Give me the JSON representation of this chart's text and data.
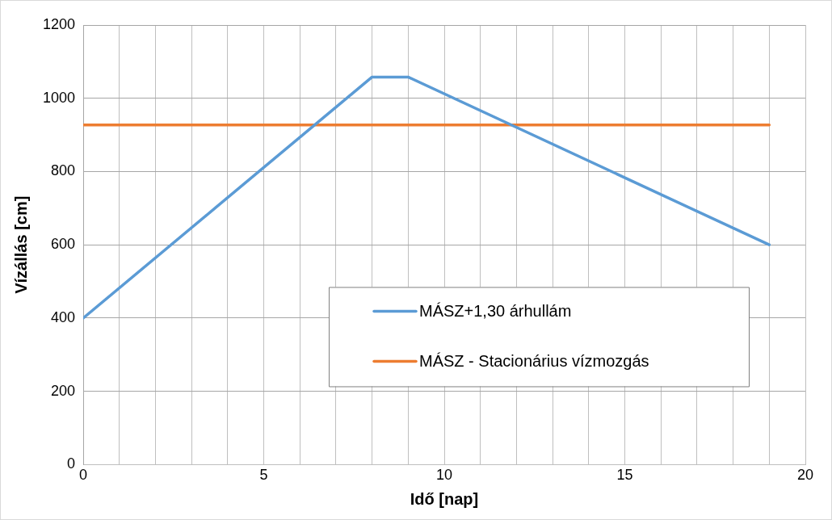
{
  "chart_data": {
    "type": "line",
    "xlabel": "Idő [nap]",
    "ylabel": "Vízállás [cm]",
    "xlim": [
      0,
      20
    ],
    "xticks": [
      0,
      {
        "value": 1,
        "label": null
      },
      {
        "value": 2,
        "label": null
      },
      {
        "value": 3,
        "label": null
      },
      {
        "value": 4,
        "label": null
      },
      5,
      {
        "value": 6,
        "label": null
      },
      {
        "value": 7,
        "label": null
      },
      {
        "value": 8,
        "label": null
      },
      {
        "value": 9,
        "label": null
      },
      10,
      {
        "value": 11,
        "label": null
      },
      {
        "value": 12,
        "label": null
      },
      {
        "value": 13,
        "label": null
      },
      {
        "value": 14,
        "label": null
      },
      15,
      {
        "value": 16,
        "label": null
      },
      {
        "value": 17,
        "label": null
      },
      {
        "value": 18,
        "label": null
      },
      {
        "value": 19,
        "label": null
      },
      20
    ],
    "ylim": [
      0,
      1200
    ],
    "yticks": [
      0,
      200,
      400,
      600,
      800,
      1000,
      1200
    ],
    "grid": true,
    "legend": "right",
    "marker": "none",
    "line_style": "solid",
    "series": [
      {
        "name": "MÁSZ+1,30 árhullám",
        "color": "#5b9bd5",
        "x": [
          0,
          8,
          9,
          19
        ],
        "values": [
          400,
          1058,
          1058,
          600
        ]
      },
      {
        "name": "MÁSZ - Stacionárius vízmozgás",
        "color": "#ed7d31",
        "x": [
          0,
          19
        ],
        "values": [
          927,
          927
        ]
      }
    ]
  }
}
